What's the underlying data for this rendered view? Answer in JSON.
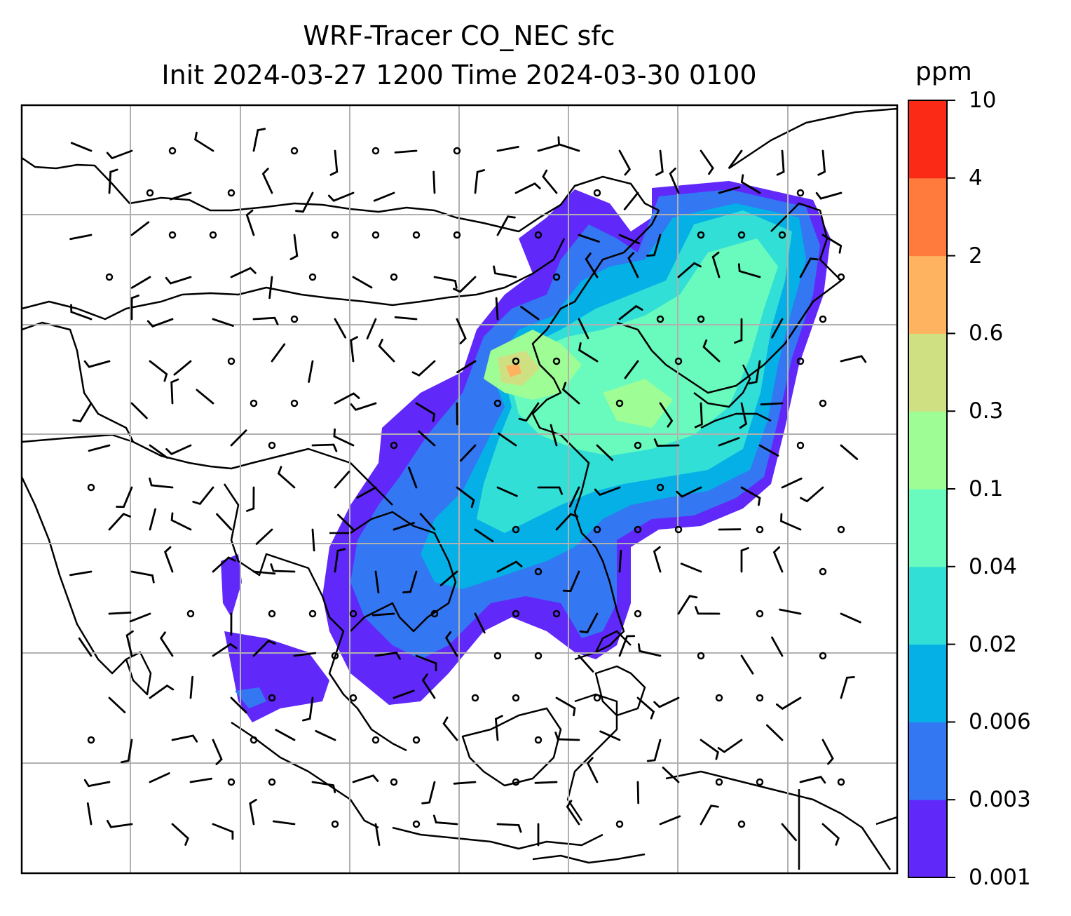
{
  "title_line1": "WRF-Tracer CO_NEC sfc",
  "title_line2": "Init 2024-03-27 1200 Time 2024-03-30 0100",
  "colorbar": {
    "unit": "ppm",
    "levels": [
      "0.001",
      "0.003",
      "0.006",
      "0.02",
      "0.04",
      "0.1",
      "0.3",
      "0.6",
      "2",
      "4",
      "10"
    ],
    "colors": [
      "#6128fa",
      "#3377f2",
      "#04b0e6",
      "#31dfd6",
      "#69fbbd",
      "#9ffd96",
      "#cfe083",
      "#fdb360",
      "#ff7a3d",
      "#fb2a16"
    ]
  },
  "map": {
    "gridlines": true,
    "wind_barbs": true,
    "field_colors": {
      "level1": "#6128fa",
      "level2": "#3377f2",
      "level3": "#04b0e6",
      "level4": "#31dfd6",
      "level5": "#69fbbd",
      "level6": "#9ffd96",
      "level7": "#cfe083",
      "level8": "#fdb360"
    }
  }
}
